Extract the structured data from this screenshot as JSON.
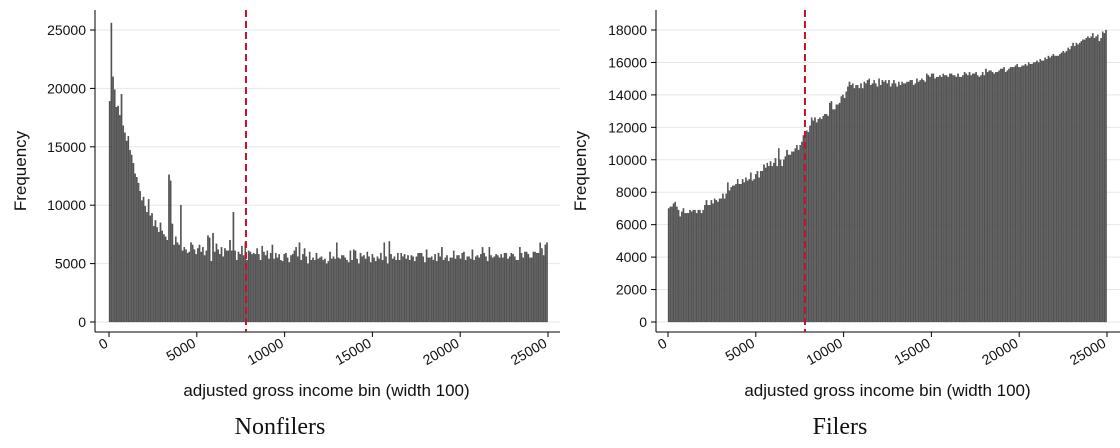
{
  "charts": [
    {
      "caption": "Nonfilers",
      "ylabel": "Frequency",
      "xlabel": "adjusted gross income bin (width 100)",
      "yticks": [
        "0",
        "5000",
        "10000",
        "15000",
        "20000",
        "25000"
      ],
      "xticks": [
        "0",
        "5000",
        "10000",
        "15000",
        "20000",
        "25000"
      ]
    },
    {
      "caption": "Filers",
      "ylabel": "Frequency",
      "xlabel": "adjusted gross income bin (width 100)",
      "yticks": [
        "0",
        "2000",
        "4000",
        "6000",
        "8000",
        "10000",
        "12000",
        "14000",
        "16000",
        "18000"
      ],
      "xticks": [
        "0",
        "5000",
        "10000",
        "15000",
        "20000",
        "25000"
      ]
    }
  ],
  "chart_data": [
    {
      "type": "bar",
      "bin_width": 100,
      "x_start": 0,
      "xlim": [
        0,
        25000
      ],
      "ylim": [
        0,
        26000
      ],
      "ytick_values": [
        0,
        5000,
        10000,
        15000,
        20000,
        25000
      ],
      "xtick_values": [
        0,
        5000,
        10000,
        15000,
        20000,
        25000
      ],
      "reference_line_x": 7800,
      "reference_line_color": "#c8102e",
      "bar_color": "#555555",
      "grid": true,
      "values": [
        18900,
        25600,
        21000,
        19900,
        18400,
        18500,
        17700,
        19500,
        16800,
        16200,
        15500,
        15900,
        14700,
        14300,
        13600,
        12700,
        12400,
        11900,
        11200,
        10400,
        10700,
        9900,
        9400,
        10500,
        9100,
        9300,
        8200,
        8700,
        8100,
        7700,
        8500,
        7800,
        7500,
        7300,
        7000,
        12600,
        12100,
        8400,
        6600,
        7300,
        6800,
        6600,
        10000,
        6100,
        6400,
        6200,
        5900,
        6000,
        6800,
        6600,
        6200,
        5800,
        6300,
        6600,
        6000,
        6400,
        5700,
        6100,
        7400,
        7200,
        5200,
        7600,
        6000,
        6700,
        6200,
        5800,
        6400,
        5600,
        6300,
        6100,
        6100,
        7000,
        6100,
        9400,
        6100,
        5300,
        6000,
        5800,
        6500,
        5700,
        6800,
        5300,
        6100,
        6000,
        5800,
        5900,
        5800,
        6300,
        5800,
        5300,
        6500,
        6000,
        5700,
        6100,
        5400,
        5900,
        6600,
        5400,
        5900,
        5500,
        5800,
        5300,
        5200,
        5800,
        5900,
        5500,
        5100,
        5700,
        5800,
        6100,
        6400,
        5600,
        6800,
        5300,
        5800,
        6300,
        5600,
        5000,
        6000,
        5300,
        5500,
        5300,
        5900,
        5400,
        5500,
        5600,
        5300,
        5400,
        5000,
        5200,
        6000,
        5400,
        5600,
        5400,
        6800,
        5500,
        5400,
        5700,
        5700,
        5500,
        5300,
        5100,
        6100,
        5300,
        6200,
        6100,
        5400,
        5000,
        5900,
        5600,
        5700,
        5400,
        6000,
        5600,
        5100,
        5800,
        5500,
        5200,
        5600,
        5400,
        5900,
        5300,
        6800,
        5600,
        5000,
        6900,
        5800,
        5400,
        5600,
        5300,
        5900,
        5300,
        5900,
        5600,
        5800,
        5400,
        5700,
        5300,
        5700,
        5600,
        5200,
        5600,
        5900,
        5900,
        5900,
        5600,
        5100,
        6200,
        5500,
        5500,
        5600,
        5300,
        5800,
        5200,
        5900,
        5600,
        6400,
        5300,
        5500,
        5700,
        5200,
        5500,
        5500,
        6100,
        5400,
        5700,
        5700,
        5400,
        5900,
        6000,
        5300,
        5600,
        5600,
        5400,
        6200,
        5300,
        5600,
        5700,
        5500,
        5800,
        6400,
        5900,
        5600,
        5200,
        6400,
        5700,
        5500,
        5600,
        5800,
        5700,
        5500,
        5800,
        5500,
        5900,
        5900,
        5400,
        5600,
        5900,
        5800,
        5600,
        5300,
        5300,
        6400,
        5900,
        5500,
        6000,
        6000,
        5800,
        5500,
        5500,
        6000,
        6000,
        5900,
        5900,
        6800,
        6300,
        5700,
        6600,
        6800
      ]
    },
    {
      "type": "bar",
      "bin_width": 100,
      "x_start": 0,
      "xlim": [
        0,
        25000
      ],
      "ylim": [
        0,
        19000
      ],
      "ytick_values": [
        0,
        2000,
        4000,
        6000,
        8000,
        10000,
        12000,
        14000,
        16000,
        18000
      ],
      "xtick_values": [
        0,
        5000,
        10000,
        15000,
        20000,
        25000
      ],
      "reference_line_x": 7800,
      "reference_line_color": "#c8102e",
      "bar_color": "#555555",
      "grid": true,
      "values": [
        7000,
        7100,
        7100,
        7300,
        7400,
        7100,
        6900,
        6500,
        6800,
        7000,
        6700,
        6700,
        6700,
        6900,
        6800,
        6900,
        6900,
        6700,
        6900,
        6900,
        6700,
        6900,
        7200,
        7500,
        7200,
        7200,
        7500,
        7300,
        7600,
        7500,
        7400,
        7600,
        7600,
        7900,
        7600,
        7900,
        8600,
        8100,
        8300,
        8400,
        8400,
        8500,
        8800,
        8500,
        8500,
        8800,
        8600,
        8900,
        8700,
        8800,
        9200,
        8700,
        8800,
        9100,
        9300,
        8900,
        9300,
        9300,
        9700,
        9500,
        9800,
        9600,
        9900,
        9600,
        9800,
        10100,
        9600,
        10700,
        10000,
        9600,
        10000,
        10200,
        10600,
        10300,
        10300,
        10500,
        10500,
        10700,
        10900,
        10600,
        10900,
        11100,
        11500,
        11500,
        11800,
        11700,
        12100,
        12600,
        12400,
        12600,
        12300,
        12500,
        12600,
        12500,
        12700,
        12800,
        12800,
        12700,
        13500,
        13600,
        13100,
        13100,
        13400,
        13400,
        13500,
        13900,
        14000,
        13800,
        14200,
        14500,
        14800,
        14600,
        14700,
        14400,
        14600,
        14600,
        14400,
        14700,
        14400,
        14800,
        14700,
        14900,
        15000,
        14600,
        14700,
        14900,
        14700,
        14500,
        15000,
        14600,
        14900,
        14800,
        14900,
        14700,
        14900,
        14500,
        14700,
        14900,
        14700,
        14500,
        14800,
        14600,
        14800,
        14700,
        14700,
        14800,
        14800,
        14900,
        14900,
        14600,
        14700,
        15000,
        14800,
        14900,
        15000,
        14900,
        14800,
        15300,
        15200,
        15100,
        15300,
        15300,
        15000,
        15100,
        15100,
        15200,
        15100,
        15300,
        15200,
        15200,
        15100,
        15300,
        15300,
        15200,
        15200,
        15100,
        15300,
        15100,
        15100,
        15200,
        15400,
        15300,
        15200,
        15400,
        15200,
        15300,
        15300,
        15400,
        15200,
        15100,
        15200,
        15400,
        15200,
        15600,
        15400,
        15500,
        15500,
        15400,
        15300,
        15400,
        15400,
        15500,
        15600,
        15600,
        15700,
        15400,
        15500,
        15600,
        15700,
        15700,
        15700,
        15800,
        15900,
        15700,
        15700,
        15800,
        15800,
        15900,
        15800,
        16000,
        15900,
        15900,
        16000,
        16000,
        16100,
        16000,
        16200,
        16100,
        16100,
        16300,
        16200,
        16400,
        16300,
        16400,
        16500,
        16400,
        16400,
        16400,
        16500,
        16600,
        16700,
        16600,
        16700,
        16900,
        16800,
        17000,
        17200,
        17000,
        17200,
        17100,
        17200,
        17300,
        17400,
        17400,
        17500,
        17600,
        17500,
        17600,
        17800,
        17500,
        17600,
        17700,
        17300,
        17500,
        17900,
        17800,
        18000
      ]
    }
  ]
}
